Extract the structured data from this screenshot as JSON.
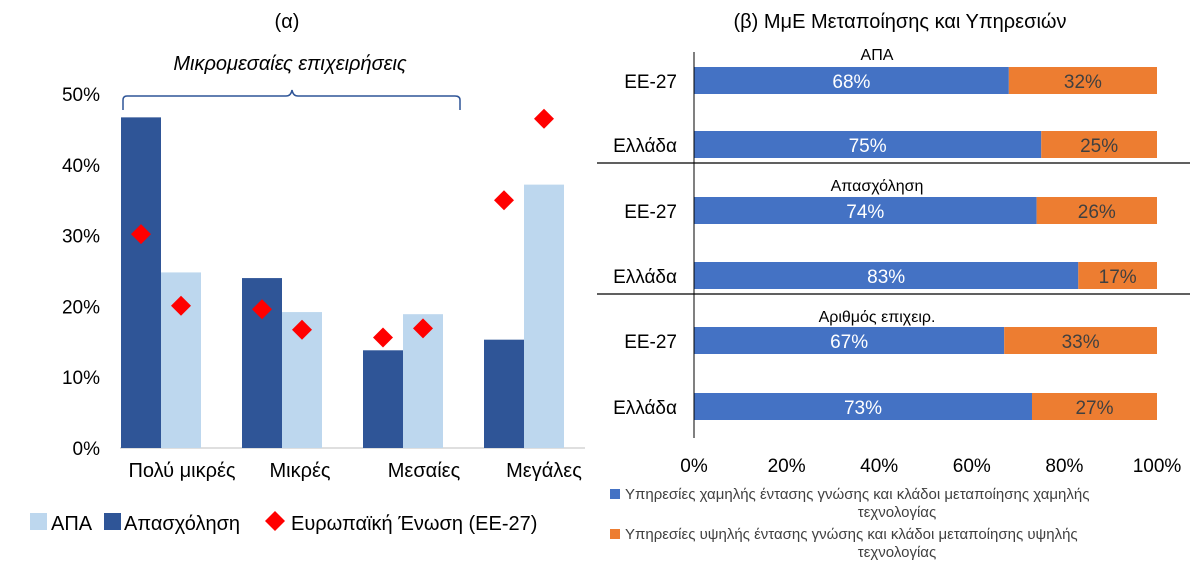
{
  "chart_data": [
    {
      "type": "bar",
      "title": "(α)",
      "annotation": "Μικρομεσαίες επιχειρήσεις",
      "categories": [
        "Πολύ μικρές",
        "Μικρές",
        "Μεσαίες",
        "Μεγάλες"
      ],
      "ylim": [
        0,
        50
      ],
      "yticks": [
        "0%",
        "10%",
        "20%",
        "30%",
        "40%",
        "50%"
      ],
      "series": [
        {
          "name": "Απασχόληση",
          "type": "bar",
          "color": "#2F5597",
          "values": [
            46.7,
            24.0,
            13.8,
            15.3
          ]
        },
        {
          "name": "ΑΠΑ",
          "type": "bar",
          "color": "#BDD7EE",
          "values": [
            24.8,
            19.2,
            18.9,
            37.2
          ]
        },
        {
          "name": "Ευρωπαϊκή Ένωση (ΕΕ-27)",
          "type": "scatter",
          "marker": "diamond",
          "color": "#FF0000",
          "values": [
            [
              30.2,
              20.1
            ],
            [
              19.6,
              16.7
            ],
            [
              15.6,
              16.9
            ],
            [
              35.0,
              46.5
            ]
          ]
        }
      ],
      "legend": [
        "ΑΠΑ",
        "Απασχόληση",
        "Ευρωπαϊκή Ένωση (ΕΕ-27)"
      ]
    },
    {
      "type": "stacked_bar_horizontal",
      "title": "(β) ΜμΕ Μεταποίησης και Υπηρεσιών",
      "xlim": [
        0,
        100
      ],
      "xticks": [
        "0%",
        "20%",
        "40%",
        "60%",
        "80%",
        "100%"
      ],
      "groups": [
        {
          "label": "ΑΠΑ",
          "rows": [
            {
              "label": "ΕΕ-27",
              "values": [
                68,
                32
              ],
              "labels": [
                "68%",
                "32%"
              ]
            },
            {
              "label": "Ελλάδα",
              "values": [
                75,
                25
              ],
              "labels": [
                "75%",
                "25%"
              ]
            }
          ]
        },
        {
          "label": "Απασχόληση",
          "rows": [
            {
              "label": "ΕΕ-27",
              "values": [
                74,
                26
              ],
              "labels": [
                "74%",
                "26%"
              ]
            },
            {
              "label": "Ελλάδα",
              "values": [
                83,
                17
              ],
              "labels": [
                "83%",
                "17%"
              ]
            }
          ]
        },
        {
          "label": "Αριθμός επιχειρ.",
          "rows": [
            {
              "label": "ΕΕ-27",
              "values": [
                67,
                33
              ],
              "labels": [
                "67%",
                "33%"
              ]
            },
            {
              "label": "Ελλάδα",
              "values": [
                73,
                27
              ],
              "labels": [
                "73%",
                "27%"
              ]
            }
          ]
        }
      ],
      "series": [
        {
          "name": "Υπηρεσίες χαμηλής έντασης γνώσης και κλάδοι μεταποίησης χαμηλής τεχνολογίας",
          "color": "#4472C4"
        },
        {
          "name": "Υπηρεσίες υψηλής έντασης γνώσης και κλάδοι μεταποίησης υψηλής τεχνολογίας",
          "color": "#ED7D31"
        }
      ],
      "legend_lines": [
        [
          "Υπηρεσίες χαμηλής έντασης γνώσης και κλάδοι μεταποίησης χαμηλής",
          "τεχνολογίας"
        ],
        [
          "Υπηρεσίες υψηλής έντασης γνώσης και κλάδοι μεταποίησης υψηλής",
          "τεχνολογίας"
        ]
      ]
    }
  ]
}
